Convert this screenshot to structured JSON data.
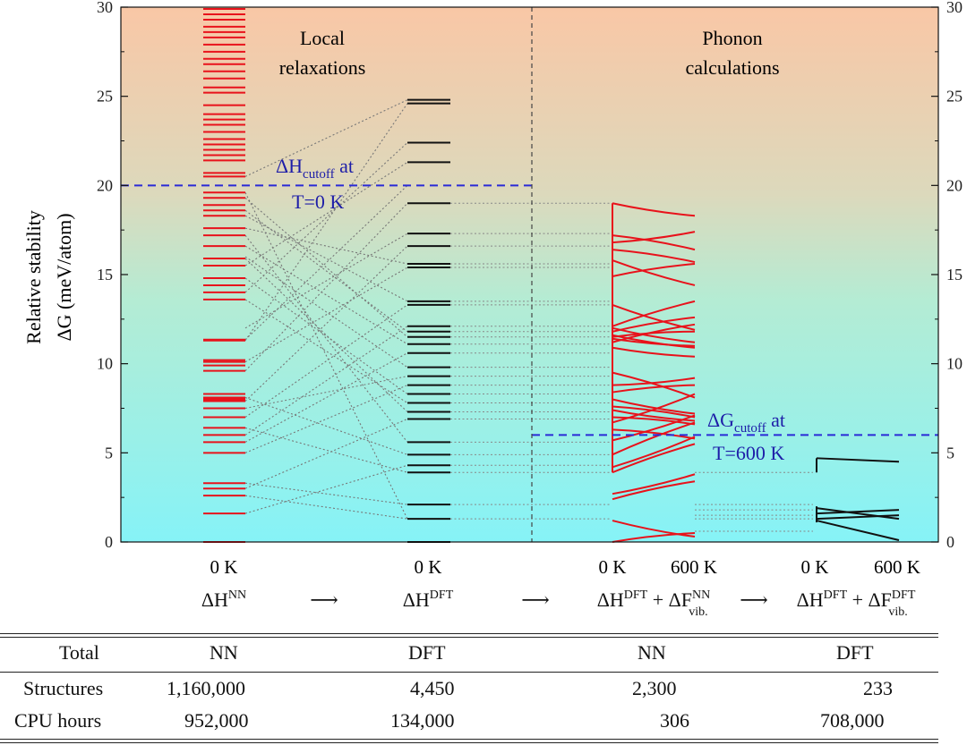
{
  "chart_data": {
    "type": "energy-level diagram",
    "ylabel_line1": "Relative stability",
    "ylabel_line2": "ΔG (meV/atom)",
    "ylim": [
      0,
      30
    ],
    "yticks": [
      0,
      5,
      10,
      15,
      20,
      25,
      30
    ],
    "region_labels": {
      "local": [
        "Local",
        "relaxations"
      ],
      "phonon": [
        "Phonon",
        "calculations"
      ]
    },
    "cutoffs": {
      "H": {
        "value": 20,
        "lab_a": "ΔH",
        "lab_sub": "cutoff",
        "lab_b": " at",
        "lab_line2": "T=0 K"
      },
      "G": {
        "value": 6,
        "lab_a": "ΔG",
        "lab_sub": "cutoff",
        "lab_b": " at",
        "lab_line2": "T=600 K"
      }
    },
    "temps": {
      "k0": "0 K",
      "k600": "600 K"
    },
    "stages": [
      {
        "main": "ΔH",
        "sup": "NN"
      },
      {
        "main": "ΔH",
        "sup": "DFT"
      },
      {
        "main": "ΔH",
        "sup": "DFT",
        "plus": " + ΔF",
        "sup2": "NN",
        "sub2": "vib."
      },
      {
        "main": "ΔH",
        "sup": "DFT",
        "plus": " + ΔF",
        "sup2": "DFT",
        "sub2": "vib."
      }
    ],
    "arrow": "⟶",
    "nn_levels": [
      0,
      1.6,
      2.6,
      3.0,
      3.3,
      5.0,
      5.6,
      6.0,
      6.4,
      7.0,
      7.5,
      7.9,
      8.0,
      8.1,
      8.3,
      9.6,
      9.9,
      10.1,
      10.2,
      11.3,
      11.35,
      13.6,
      14.0,
      14.4,
      14.8,
      15.5,
      15.9,
      16.6,
      17.2,
      17.6,
      18.3,
      18.6,
      18.9,
      19.3,
      19.6,
      20.5,
      20.7,
      21.4,
      21.7,
      22.0,
      22.3,
      22.6,
      23.0,
      23.4,
      23.7,
      24.0,
      24.5,
      25.2,
      25.5,
      26.0,
      26.4,
      26.8,
      27.1,
      27.5,
      27.9,
      28.3,
      28.6,
      28.9,
      29.3,
      29.6,
      29.9
    ],
    "dft_levels": [
      0,
      1.3,
      2.1,
      3.9,
      4.3,
      4.9,
      5.6,
      6.9,
      7.3,
      7.8,
      8.3,
      8.8,
      9.3,
      9.8,
      10.6,
      11.1,
      11.5,
      11.8,
      12.1,
      13.3,
      13.5,
      15.4,
      15.6,
      16.6,
      17.3,
      19.0,
      21.3,
      22.4,
      24.6,
      24.8
    ],
    "connections": [
      [
        0,
        0
      ],
      [
        1.6,
        4.3
      ],
      [
        2.6,
        1.3
      ],
      [
        3.0,
        6.9
      ],
      [
        3.3,
        2.1
      ],
      [
        5.0,
        8.8
      ],
      [
        5.6,
        10.6
      ],
      [
        6.0,
        12.1
      ],
      [
        6.4,
        3.9
      ],
      [
        7.0,
        13.3
      ],
      [
        7.5,
        9.3
      ],
      [
        7.9,
        16.6
      ],
      [
        8.1,
        4.9
      ],
      [
        9.6,
        19.0
      ],
      [
        10.1,
        15.4
      ],
      [
        11.3,
        24.6
      ],
      [
        13.6,
        7.8
      ],
      [
        14.0,
        22.4
      ],
      [
        15.5,
        21.3
      ],
      [
        16.6,
        11.1
      ],
      [
        17.2,
        5.6
      ],
      [
        18.3,
        13.5
      ],
      [
        19.3,
        11.5
      ],
      [
        19.6,
        1.3
      ],
      [
        20.5,
        24.8
      ],
      [
        14.8,
        8.3
      ],
      [
        16.0,
        9.8
      ],
      [
        18.6,
        11.8
      ],
      [
        17.6,
        15.6
      ],
      [
        15.9,
        7.3
      ],
      [
        12.0,
        17.3
      ],
      [
        11.35,
        20.0
      ]
    ],
    "nn_phonon": [
      [
        19.0,
        18.3
      ],
      [
        17.2,
        16.4
      ],
      [
        16.8,
        17.4
      ],
      [
        16.4,
        15.7
      ],
      [
        15.8,
        14.4
      ],
      [
        14.9,
        15.6
      ],
      [
        13.3,
        11.9
      ],
      [
        12.1,
        13.5
      ],
      [
        12.0,
        11.2
      ],
      [
        11.8,
        12.6
      ],
      [
        11.6,
        10.9
      ],
      [
        11.5,
        11.8
      ],
      [
        11.4,
        11.0
      ],
      [
        11.2,
        12.2
      ],
      [
        10.9,
        10.4
      ],
      [
        9.5,
        8.1
      ],
      [
        8.8,
        9.2
      ],
      [
        8.4,
        8.8
      ],
      [
        8.0,
        7.2
      ],
      [
        7.6,
        7.0
      ],
      [
        7.4,
        6.8
      ],
      [
        7.0,
        6.6
      ],
      [
        6.7,
        8.3
      ],
      [
        6.3,
        5.8
      ],
      [
        5.7,
        7.1
      ],
      [
        4.9,
        6.7
      ],
      [
        4.2,
        5.9
      ],
      [
        3.9,
        5.5
      ],
      [
        2.7,
        3.8
      ],
      [
        2.4,
        3.4
      ],
      [
        1.2,
        0.3
      ],
      [
        0.0,
        0.5
      ]
    ],
    "dft_phonon": [
      [
        4.7,
        4.5
      ],
      [
        1.9,
        1.3
      ],
      [
        1.6,
        1.8
      ],
      [
        1.3,
        1.5
      ],
      [
        1.2,
        0.1
      ]
    ]
  },
  "table": {
    "header": {
      "label": "Total",
      "c1": "NN",
      "c2": "DFT",
      "c3": "NN",
      "c4": "DFT"
    },
    "rows": [
      {
        "label": "Structures",
        "c1": "1,160,000",
        "c2": "4,450",
        "c3": "2,300",
        "c4": "233"
      },
      {
        "label": "CPU hours",
        "c1": "952,000",
        "c2": "134,000",
        "c3": "306",
        "c4": "708,000"
      }
    ]
  },
  "colors": {
    "red": "#e8121b",
    "black": "#111111",
    "blue": "#2a2ad6",
    "bg_top": "#f9c7a6",
    "bg_bottom": "#86f3f7"
  }
}
